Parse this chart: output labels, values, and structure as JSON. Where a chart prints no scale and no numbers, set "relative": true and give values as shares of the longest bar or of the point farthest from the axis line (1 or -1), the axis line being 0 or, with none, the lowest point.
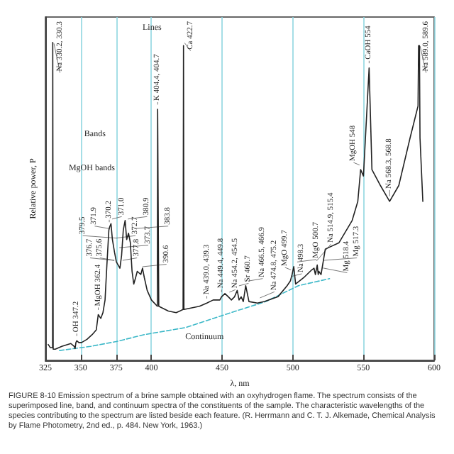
{
  "chart_data": {
    "type": "line",
    "relative": true,
    "xlabel": "λ, nm",
    "ylabel": "Relative power, P",
    "xlim": [
      325,
      600
    ],
    "xticks": [
      325,
      350,
      375,
      400,
      450,
      500,
      550,
      600
    ],
    "grid": "x",
    "series": [
      {
        "color": "#222222",
        "x": [
          327,
          328.5,
          330.1,
          330.2,
          330.3,
          330.5,
          332,
          336.6,
          343,
          345.4,
          346,
          346.6,
          347.2,
          348.6,
          350.6,
          354.4,
          358.1,
          361,
          362.4,
          364.2,
          365.7,
          367.2,
          368.5,
          369.9,
          370.5,
          371.4,
          372.4,
          373.9,
          375.2,
          377.7,
          378.9,
          380.1,
          381.4,
          382.5,
          383.8,
          385.1,
          386.3,
          387.5,
          388.8,
          390,
          392.5,
          393.7,
          395,
          397,
          400,
          404.2,
          404.4,
          404.7,
          405.2,
          412,
          417.5,
          422.4,
          422.7,
          423,
          434,
          439.2,
          443.7,
          448.4,
          449.6,
          452,
          454.4,
          456.6,
          458.8,
          460.7,
          462,
          463.5,
          465,
          466.7,
          469,
          475,
          480,
          489.5,
          496,
          498.3,
          499.5,
          500.7,
          502,
          507.7,
          513.5,
          515,
          516,
          517.3,
          518,
          518.4,
          520,
          523,
          532.7,
          542,
          546,
          548,
          550,
          554,
          556,
          562,
          568.5,
          575,
          583,
          588.6,
          589,
          589.3,
          589.6,
          590,
          592
        ],
        "values": [
          0.05,
          0.04,
          0.04,
          1.0,
          1.0,
          0.035,
          0.035,
          0.044,
          0.053,
          0.044,
          0.037,
          0.056,
          0.062,
          0.056,
          0.056,
          0.066,
          0.081,
          0.096,
          0.144,
          0.132,
          0.15,
          0.19,
          0.3,
          0.41,
          0.42,
          0.43,
          0.38,
          0.34,
          0.31,
          0.29,
          0.33,
          0.41,
          0.44,
          0.38,
          0.4,
          0.37,
          0.28,
          0.24,
          0.26,
          0.28,
          0.27,
          0.29,
          0.26,
          0.22,
          0.19,
          0.17,
          0.79,
          0.79,
          0.17,
          0.155,
          0.15,
          0.16,
          0.99,
          0.16,
          0.17,
          0.18,
          0.19,
          0.19,
          0.2,
          0.21,
          0.2,
          0.19,
          0.2,
          0.22,
          0.19,
          0.2,
          0.185,
          0.235,
          0.185,
          0.18,
          0.185,
          0.2,
          0.235,
          0.25,
          0.27,
          0.295,
          0.24,
          0.26,
          0.285,
          0.29,
          0.27,
          0.3,
          0.27,
          0.28,
          0.27,
          0.35,
          0.37,
          0.44,
          0.5,
          0.6,
          0.58,
          0.92,
          0.6,
          0.55,
          0.5,
          0.55,
          0.7,
          0.8,
          0.99,
          0.95,
          0.99,
          0.7,
          0.5
        ]
      },
      {
        "name": "Continuum",
        "color": "#3cb8c8",
        "line_style": "dashed",
        "x": [
          335,
          357,
          375,
          395,
          424,
          459,
          481,
          504,
          526
        ],
        "values": [
          0.031,
          0.044,
          0.059,
          0.081,
          0.103,
          0.154,
          0.185,
          0.235,
          0.257
        ]
      }
    ],
    "annotations": [
      "Lines",
      "Bands",
      "MgOH bands",
      {
        "text": "Na 330.2, 330.3",
        "x": 330.3,
        "y": 1.0
      },
      {
        "text": "OH 347.2",
        "x": 347.2,
        "y": 0.062
      },
      {
        "text": "MgOH 362.4",
        "x": 362.4,
        "y": 0.144
      },
      {
        "text": "370.2",
        "x": 370.2,
        "y": 0.42
      },
      {
        "text": "371.0",
        "x": 371.0,
        "y": 0.43
      },
      {
        "text": "371.9",
        "x": 371.9,
        "y": 0.4
      },
      {
        "text": "372.7",
        "x": 372.7,
        "y": 0.37
      },
      {
        "text": "373.7",
        "x": 373.7,
        "y": 0.34
      },
      {
        "text": "375.6",
        "x": 375.6,
        "y": 0.3
      },
      {
        "text": "376.7",
        "x": 376.7,
        "y": 0.3
      },
      {
        "text": "377.8",
        "x": 377.8,
        "y": 0.3
      },
      {
        "text": "379.5",
        "x": 379.5,
        "y": 0.37
      },
      {
        "text": "380.9",
        "x": 380.9,
        "y": 0.43
      },
      {
        "text": "383.8",
        "x": 383.8,
        "y": 0.4
      },
      {
        "text": "390.6",
        "x": 390.6,
        "y": 0.28
      },
      {
        "text": "K 404.4, 404.7",
        "x": 404.5,
        "y": 0.79
      },
      {
        "text": "Ca 422.7",
        "x": 422.7,
        "y": 0.99
      },
      {
        "text": "Na 439.0, 439.3",
        "x": 439.2,
        "y": 0.18
      },
      {
        "text": "Na 449.4, 449.8",
        "x": 449.6,
        "y": 0.2
      },
      {
        "text": "Na 454.2, 454.5",
        "x": 454.4,
        "y": 0.2
      },
      {
        "text": "Sr 460.7",
        "x": 460.7,
        "y": 0.22
      },
      {
        "text": "Na 466.5, 466.9",
        "x": 466.7,
        "y": 0.235
      },
      {
        "text": "Na 474.8, 475.2",
        "x": 475,
        "y": 0.18
      },
      {
        "text": "Na 498.3",
        "x": 498.3,
        "y": 0.25
      },
      {
        "text": "MgO 499.7",
        "x": 499.5,
        "y": 0.27
      },
      {
        "text": "MgO 500.7",
        "x": 500.7,
        "y": 0.295
      },
      {
        "text": "Na 514.9, 515.4",
        "x": 515,
        "y": 0.29
      },
      {
        "text": "Mg 517.3",
        "x": 517.3,
        "y": 0.3
      },
      {
        "text": "Mg 518.4",
        "x": 518.4,
        "y": 0.28
      },
      {
        "text": "MgOH 548",
        "x": 548,
        "y": 0.6
      },
      {
        "text": "CaOH 554",
        "x": 554,
        "y": 0.92
      },
      {
        "text": "Na 568.3, 568.8",
        "x": 568.5,
        "y": 0.5
      },
      {
        "text": "Na 589.0, 589.6",
        "x": 589.3,
        "y": 0.99
      },
      "FIGURE 8-10 Emission spectrum of a brine sample obtained with an oxyhydrogen flame. The spectrum consists of the superimposed line, band, and continuum spectra of the constituents of the sample. The characteristic wavelengths of the species contributing to the spectrum are listed beside each feature. (R. Herrmann and C. T. J. Alkemade, Chemical Analysis by Flame Photometry, 2nd ed., p. 484. New York, 1963.)"
    ]
  }
}
